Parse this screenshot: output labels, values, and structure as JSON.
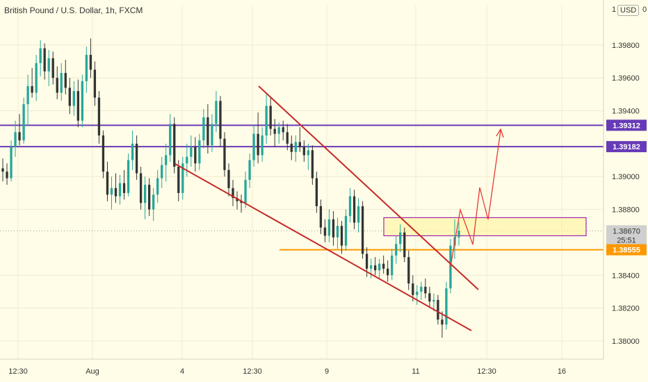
{
  "header": {
    "title": "British Pound / U.S. Dollar, 1h, FXCM",
    "currency": "USD"
  },
  "chart_data": {
    "type": "candlestick",
    "title": "British Pound / U.S. Dollar, 1h, FXCM",
    "x_ticks": [
      "12:30",
      "Aug",
      "4",
      "12:30",
      "9",
      "11",
      "12:30",
      "16"
    ],
    "y_ticks": [
      "1.39800",
      "1.39600",
      "1.39400",
      "1.39000",
      "1.38800",
      "1.38400",
      "1.38200",
      "1.38000"
    ],
    "y_partial_top": "1",
    "top_right_partial": "0",
    "ylim": [
      1.3789,
      1.4004
    ],
    "price_labels": [
      {
        "label": "1.39312",
        "value": 1.39312,
        "color": "#673ab7"
      },
      {
        "label": "1.39182",
        "value": 1.39182,
        "color": "#673ab7"
      },
      {
        "label": "1.38670",
        "value": 1.3867,
        "color": "#cfcfcf"
      },
      {
        "label": "25:51",
        "value": 1.38615,
        "color": "#cfcfcf"
      },
      {
        "label": "1.38555",
        "value": 1.38555,
        "color": "#ff9800"
      }
    ],
    "horizontal_levels": [
      {
        "value": 1.39312,
        "color": "#673ab7"
      },
      {
        "value": 1.39182,
        "color": "#673ab7"
      },
      {
        "value": 1.38555,
        "color": "#ff9800"
      }
    ],
    "zone": {
      "low": 1.3864,
      "high": 1.3875,
      "color": "#9c27b0"
    },
    "current_price": 1.3867,
    "candles": [
      {
        "o": 1.3905,
        "h": 1.3911,
        "l": 1.3897,
        "c": 1.3903
      },
      {
        "o": 1.3903,
        "h": 1.3908,
        "l": 1.3895,
        "c": 1.3899
      },
      {
        "o": 1.3899,
        "h": 1.3922,
        "l": 1.3897,
        "c": 1.3918
      },
      {
        "o": 1.3918,
        "h": 1.3934,
        "l": 1.3912,
        "c": 1.3927
      },
      {
        "o": 1.3927,
        "h": 1.3938,
        "l": 1.3919,
        "c": 1.3922
      },
      {
        "o": 1.3922,
        "h": 1.3948,
        "l": 1.392,
        "c": 1.3944
      },
      {
        "o": 1.3944,
        "h": 1.3962,
        "l": 1.3931,
        "c": 1.3955
      },
      {
        "o": 1.3955,
        "h": 1.3966,
        "l": 1.3948,
        "c": 1.3951
      },
      {
        "o": 1.3951,
        "h": 1.3974,
        "l": 1.3946,
        "c": 1.3969
      },
      {
        "o": 1.3969,
        "h": 1.3983,
        "l": 1.3961,
        "c": 1.3978
      },
      {
        "o": 1.3978,
        "h": 1.3981,
        "l": 1.3959,
        "c": 1.3964
      },
      {
        "o": 1.3964,
        "h": 1.3977,
        "l": 1.3955,
        "c": 1.3972
      },
      {
        "o": 1.3972,
        "h": 1.3976,
        "l": 1.3956,
        "c": 1.396
      },
      {
        "o": 1.396,
        "h": 1.3967,
        "l": 1.3947,
        "c": 1.3951
      },
      {
        "o": 1.3951,
        "h": 1.3969,
        "l": 1.3946,
        "c": 1.3963
      },
      {
        "o": 1.3963,
        "h": 1.3971,
        "l": 1.395,
        "c": 1.3954
      },
      {
        "o": 1.3954,
        "h": 1.396,
        "l": 1.3938,
        "c": 1.3943
      },
      {
        "o": 1.3943,
        "h": 1.3958,
        "l": 1.3937,
        "c": 1.3952
      },
      {
        "o": 1.3952,
        "h": 1.3959,
        "l": 1.393,
        "c": 1.3934
      },
      {
        "o": 1.3934,
        "h": 1.3962,
        "l": 1.393,
        "c": 1.3958
      },
      {
        "o": 1.3958,
        "h": 1.3979,
        "l": 1.3951,
        "c": 1.3974
      },
      {
        "o": 1.3974,
        "h": 1.3984,
        "l": 1.396,
        "c": 1.3965
      },
      {
        "o": 1.3965,
        "h": 1.397,
        "l": 1.3943,
        "c": 1.3948
      },
      {
        "o": 1.3948,
        "h": 1.3952,
        "l": 1.392,
        "c": 1.3925
      },
      {
        "o": 1.3925,
        "h": 1.3928,
        "l": 1.3899,
        "c": 1.3903
      },
      {
        "o": 1.3903,
        "h": 1.3909,
        "l": 1.3885,
        "c": 1.3889
      },
      {
        "o": 1.3889,
        "h": 1.39,
        "l": 1.388,
        "c": 1.3893
      },
      {
        "o": 1.3893,
        "h": 1.3902,
        "l": 1.3884,
        "c": 1.3888
      },
      {
        "o": 1.3888,
        "h": 1.3901,
        "l": 1.3883,
        "c": 1.3896
      },
      {
        "o": 1.3896,
        "h": 1.3904,
        "l": 1.3886,
        "c": 1.389
      },
      {
        "o": 1.389,
        "h": 1.3914,
        "l": 1.3888,
        "c": 1.391
      },
      {
        "o": 1.391,
        "h": 1.3928,
        "l": 1.3904,
        "c": 1.392
      },
      {
        "o": 1.392,
        "h": 1.3925,
        "l": 1.3898,
        "c": 1.3902
      },
      {
        "o": 1.3902,
        "h": 1.3906,
        "l": 1.388,
        "c": 1.3884
      },
      {
        "o": 1.3884,
        "h": 1.39,
        "l": 1.3874,
        "c": 1.3895
      },
      {
        "o": 1.3895,
        "h": 1.3899,
        "l": 1.3876,
        "c": 1.388
      },
      {
        "o": 1.388,
        "h": 1.3893,
        "l": 1.3873,
        "c": 1.3889
      },
      {
        "o": 1.3889,
        "h": 1.3904,
        "l": 1.3884,
        "c": 1.3899
      },
      {
        "o": 1.3899,
        "h": 1.3912,
        "l": 1.3893,
        "c": 1.3907
      },
      {
        "o": 1.3907,
        "h": 1.392,
        "l": 1.3897,
        "c": 1.3913
      },
      {
        "o": 1.3913,
        "h": 1.3938,
        "l": 1.3909,
        "c": 1.3932
      },
      {
        "o": 1.3932,
        "h": 1.3936,
        "l": 1.3902,
        "c": 1.3906
      },
      {
        "o": 1.3906,
        "h": 1.391,
        "l": 1.3885,
        "c": 1.389
      },
      {
        "o": 1.389,
        "h": 1.3912,
        "l": 1.3886,
        "c": 1.3908
      },
      {
        "o": 1.3908,
        "h": 1.392,
        "l": 1.39,
        "c": 1.3912
      },
      {
        "o": 1.3912,
        "h": 1.3925,
        "l": 1.3906,
        "c": 1.3918
      },
      {
        "o": 1.3918,
        "h": 1.3924,
        "l": 1.3903,
        "c": 1.3908
      },
      {
        "o": 1.3908,
        "h": 1.3926,
        "l": 1.3904,
        "c": 1.3922
      },
      {
        "o": 1.3922,
        "h": 1.3941,
        "l": 1.3917,
        "c": 1.3936
      },
      {
        "o": 1.3936,
        "h": 1.3944,
        "l": 1.3914,
        "c": 1.3919
      },
      {
        "o": 1.3919,
        "h": 1.3938,
        "l": 1.3915,
        "c": 1.3932
      },
      {
        "o": 1.3932,
        "h": 1.3952,
        "l": 1.3927,
        "c": 1.3946
      },
      {
        "o": 1.3946,
        "h": 1.3949,
        "l": 1.3918,
        "c": 1.3923
      },
      {
        "o": 1.3923,
        "h": 1.3927,
        "l": 1.39,
        "c": 1.3904
      },
      {
        "o": 1.3904,
        "h": 1.3908,
        "l": 1.3888,
        "c": 1.3893
      },
      {
        "o": 1.3893,
        "h": 1.3898,
        "l": 1.3882,
        "c": 1.3887
      },
      {
        "o": 1.3887,
        "h": 1.3891,
        "l": 1.388,
        "c": 1.3885
      },
      {
        "o": 1.3885,
        "h": 1.3889,
        "l": 1.3878,
        "c": 1.3884
      },
      {
        "o": 1.3884,
        "h": 1.3903,
        "l": 1.3881,
        "c": 1.3898
      },
      {
        "o": 1.3898,
        "h": 1.3914,
        "l": 1.3893,
        "c": 1.391
      },
      {
        "o": 1.391,
        "h": 1.3931,
        "l": 1.3906,
        "c": 1.3926
      },
      {
        "o": 1.3926,
        "h": 1.3939,
        "l": 1.3908,
        "c": 1.3913
      },
      {
        "o": 1.3913,
        "h": 1.393,
        "l": 1.3909,
        "c": 1.3925
      },
      {
        "o": 1.3925,
        "h": 1.395,
        "l": 1.392,
        "c": 1.3943
      },
      {
        "o": 1.3943,
        "h": 1.3948,
        "l": 1.3925,
        "c": 1.3929
      },
      {
        "o": 1.3929,
        "h": 1.3935,
        "l": 1.3918,
        "c": 1.3926
      },
      {
        "o": 1.3926,
        "h": 1.3933,
        "l": 1.392,
        "c": 1.393
      },
      {
        "o": 1.393,
        "h": 1.3934,
        "l": 1.3922,
        "c": 1.3927
      },
      {
        "o": 1.3927,
        "h": 1.3932,
        "l": 1.3916,
        "c": 1.392
      },
      {
        "o": 1.392,
        "h": 1.3925,
        "l": 1.391,
        "c": 1.3915
      },
      {
        "o": 1.3915,
        "h": 1.3925,
        "l": 1.3909,
        "c": 1.3921
      },
      {
        "o": 1.3921,
        "h": 1.393,
        "l": 1.3915,
        "c": 1.3918
      },
      {
        "o": 1.3918,
        "h": 1.3922,
        "l": 1.3909,
        "c": 1.3913
      },
      {
        "o": 1.3913,
        "h": 1.392,
        "l": 1.3904,
        "c": 1.3916
      },
      {
        "o": 1.3916,
        "h": 1.3919,
        "l": 1.3895,
        "c": 1.3899
      },
      {
        "o": 1.3899,
        "h": 1.3903,
        "l": 1.3878,
        "c": 1.3882
      },
      {
        "o": 1.3882,
        "h": 1.3886,
        "l": 1.3865,
        "c": 1.3869
      },
      {
        "o": 1.3869,
        "h": 1.3874,
        "l": 1.386,
        "c": 1.3864
      },
      {
        "o": 1.3864,
        "h": 1.388,
        "l": 1.386,
        "c": 1.3874
      },
      {
        "o": 1.3874,
        "h": 1.3879,
        "l": 1.3858,
        "c": 1.3863
      },
      {
        "o": 1.3863,
        "h": 1.3875,
        "l": 1.3856,
        "c": 1.387
      },
      {
        "o": 1.387,
        "h": 1.3873,
        "l": 1.3853,
        "c": 1.3858
      },
      {
        "o": 1.3858,
        "h": 1.388,
        "l": 1.3855,
        "c": 1.3876
      },
      {
        "o": 1.3876,
        "h": 1.3893,
        "l": 1.3872,
        "c": 1.3888
      },
      {
        "o": 1.3888,
        "h": 1.3892,
        "l": 1.3868,
        "c": 1.3872
      },
      {
        "o": 1.3872,
        "h": 1.3887,
        "l": 1.3866,
        "c": 1.3882
      },
      {
        "o": 1.3882,
        "h": 1.3885,
        "l": 1.385,
        "c": 1.3853
      },
      {
        "o": 1.3853,
        "h": 1.3857,
        "l": 1.3839,
        "c": 1.3844
      },
      {
        "o": 1.3844,
        "h": 1.385,
        "l": 1.3838,
        "c": 1.3846
      },
      {
        "o": 1.3846,
        "h": 1.3851,
        "l": 1.384,
        "c": 1.3843
      },
      {
        "o": 1.3843,
        "h": 1.385,
        "l": 1.3838,
        "c": 1.3847
      },
      {
        "o": 1.3847,
        "h": 1.3852,
        "l": 1.3841,
        "c": 1.3844
      },
      {
        "o": 1.3844,
        "h": 1.3849,
        "l": 1.3836,
        "c": 1.384
      },
      {
        "o": 1.384,
        "h": 1.3856,
        "l": 1.3837,
        "c": 1.3852
      },
      {
        "o": 1.3852,
        "h": 1.3864,
        "l": 1.3847,
        "c": 1.3859
      },
      {
        "o": 1.3859,
        "h": 1.3871,
        "l": 1.3854,
        "c": 1.3866
      },
      {
        "o": 1.3866,
        "h": 1.3869,
        "l": 1.3848,
        "c": 1.3851
      },
      {
        "o": 1.3851,
        "h": 1.3855,
        "l": 1.3831,
        "c": 1.3835
      },
      {
        "o": 1.3835,
        "h": 1.384,
        "l": 1.3824,
        "c": 1.3828
      },
      {
        "o": 1.3828,
        "h": 1.3834,
        "l": 1.3822,
        "c": 1.383
      },
      {
        "o": 1.383,
        "h": 1.3836,
        "l": 1.3825,
        "c": 1.3833
      },
      {
        "o": 1.3833,
        "h": 1.3838,
        "l": 1.3826,
        "c": 1.3829
      },
      {
        "o": 1.3829,
        "h": 1.3833,
        "l": 1.382,
        "c": 1.3824
      },
      {
        "o": 1.3824,
        "h": 1.3829,
        "l": 1.3818,
        "c": 1.3825
      },
      {
        "o": 1.3825,
        "h": 1.3828,
        "l": 1.381,
        "c": 1.3813
      },
      {
        "o": 1.3813,
        "h": 1.3818,
        "l": 1.3802,
        "c": 1.381
      },
      {
        "o": 1.381,
        "h": 1.3836,
        "l": 1.3807,
        "c": 1.3832
      },
      {
        "o": 1.3832,
        "h": 1.3862,
        "l": 1.3829,
        "c": 1.3858
      },
      {
        "o": 1.3858,
        "h": 1.3874,
        "l": 1.385,
        "c": 1.3863
      },
      {
        "o": 1.3863,
        "h": 1.3872,
        "l": 1.3858,
        "c": 1.3867
      }
    ],
    "colors": {
      "up": "#26a69a",
      "down": "#333333",
      "grid": "#f0ead0",
      "trendline": "#c62828",
      "projection": "#e53935"
    }
  }
}
